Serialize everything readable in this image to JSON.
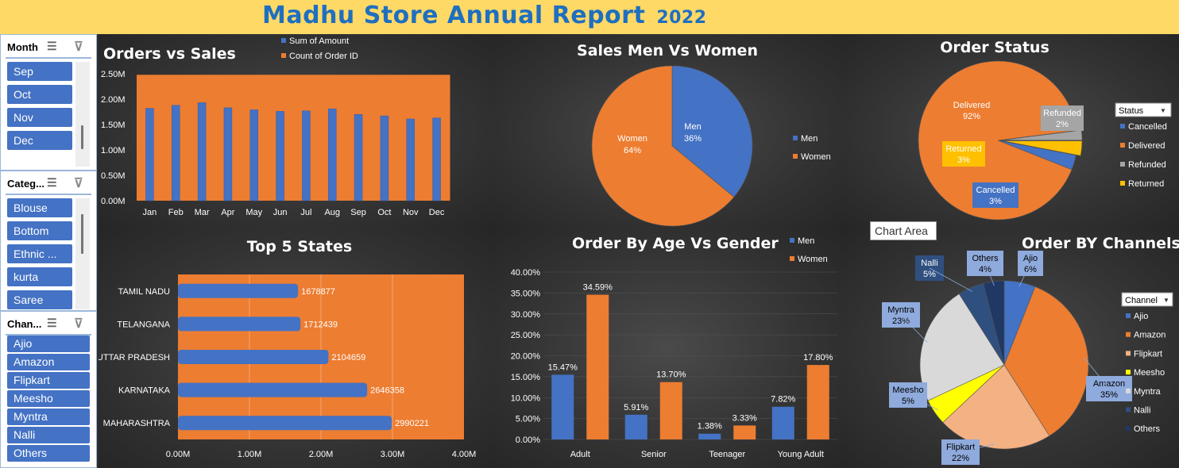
{
  "header": {
    "title": "Madhu Store Annual Report",
    "year": "2022"
  },
  "slicers": {
    "month": {
      "title": "Month",
      "items": [
        "Sep",
        "Oct",
        "Nov",
        "Dec"
      ]
    },
    "category": {
      "title": "Categ...",
      "items": [
        "Blouse",
        "Bottom",
        "Ethnic ...",
        "kurta",
        "Saree"
      ]
    },
    "channel": {
      "title": "Chan...",
      "items": [
        "Ajio",
        "Amazon",
        "Flipkart",
        "Meesho",
        "Myntra",
        "Nalli",
        "Others"
      ]
    }
  },
  "tooltip": {
    "text": "Chart Area"
  },
  "colors": {
    "blue": "#4472c4",
    "orange": "#ed7d31",
    "gray": "#a5a5a5",
    "yellow": "#ffc000",
    "title_bar": "#ffd966",
    "title_text": "#1f6fc0"
  },
  "chart_data": [
    {
      "id": "orders-vs-sales",
      "type": "bar",
      "title": "Orders vs Sales",
      "categories": [
        "Jan",
        "Feb",
        "Mar",
        "Apr",
        "May",
        "Jun",
        "Jul",
        "Aug",
        "Sep",
        "Oct",
        "Nov",
        "Dec"
      ],
      "series": [
        {
          "name": "Sum of Amount",
          "values": [
            1.82,
            1.88,
            1.93,
            1.83,
            1.79,
            1.76,
            1.77,
            1.81,
            1.7,
            1.67,
            1.61,
            1.63
          ]
        },
        {
          "name": "Count of Order ID",
          "values": [
            2.48,
            2.48,
            2.48,
            2.48,
            2.48,
            2.48,
            2.48,
            2.48,
            2.48,
            2.48,
            2.48,
            2.48
          ]
        }
      ],
      "yticks": [
        "0.00M",
        "0.50M",
        "1.00M",
        "1.50M",
        "2.00M",
        "2.50M"
      ],
      "ylim": [
        0,
        2.5
      ],
      "legend": "top"
    },
    {
      "id": "sales-men-women",
      "type": "pie",
      "title": "Sales Men Vs Women",
      "labels": [
        "Men",
        "Women"
      ],
      "values": [
        36,
        64
      ],
      "data_labels": [
        "36%",
        "64%"
      ],
      "legend": [
        "Men",
        "Women"
      ]
    },
    {
      "id": "order-status",
      "type": "pie",
      "title": "Order Status",
      "labels": [
        "Cancelled",
        "Delivered",
        "Refunded",
        "Returned"
      ],
      "values": [
        3,
        92,
        2,
        3
      ],
      "data_labels": [
        "3%",
        "92%",
        "2%",
        "3%"
      ],
      "legend_header": "Status",
      "legend": [
        "Cancelled",
        "Delivered",
        "Refunded",
        "Returned"
      ]
    },
    {
      "id": "top-5-states",
      "type": "bar",
      "orientation": "horizontal",
      "title": "Top 5 States",
      "categories": [
        "TAMIL NADU",
        "TELANGANA",
        "UTTAR PRADESH",
        "KARNATAKA",
        "MAHARASHTRA"
      ],
      "values": [
        1678877,
        1712439,
        2104659,
        2646358,
        2990221
      ],
      "data_labels": [
        "1678877",
        "1712439",
        "2104659",
        "2646358",
        "2990221"
      ],
      "xticks": [
        "0.00M",
        "1.00M",
        "2.00M",
        "3.00M",
        "4.00M"
      ],
      "xlim": [
        0,
        4000000
      ]
    },
    {
      "id": "order-age-gender",
      "type": "bar",
      "title": "Order By Age Vs Gender",
      "categories": [
        "Adult",
        "Senior",
        "Teenager",
        "Young Adult"
      ],
      "series": [
        {
          "name": "Men",
          "values": [
            15.47,
            5.91,
            1.38,
            7.82
          ],
          "data_labels": [
            "15.47%",
            "5.91%",
            "1.38%",
            "7.82%"
          ]
        },
        {
          "name": "Women",
          "values": [
            34.59,
            13.7,
            3.33,
            17.8
          ],
          "data_labels": [
            "34.59%",
            "13.70%",
            "3.33%",
            "17.80%"
          ]
        }
      ],
      "yticks": [
        "0.00%",
        "5.00%",
        "10.00%",
        "15.00%",
        "20.00%",
        "25.00%",
        "30.00%",
        "35.00%",
        "40.00%"
      ],
      "ylim": [
        0,
        40
      ]
    },
    {
      "id": "order-channels",
      "type": "pie",
      "title": "Order BY Channels",
      "labels": [
        "Ajio",
        "Amazon",
        "Flipkart",
        "Meesho",
        "Myntra",
        "Nalli",
        "Others"
      ],
      "values": [
        6,
        35,
        22,
        5,
        23,
        5,
        4
      ],
      "data_labels": [
        "6%",
        "35%",
        "22%",
        "5%",
        "23%",
        "5%",
        "4%"
      ],
      "legend_header": "Channel",
      "legend": [
        "Ajio",
        "Amazon",
        "Flipkart",
        "Meesho",
        "Myntra",
        "Nalli",
        "Others"
      ]
    }
  ]
}
